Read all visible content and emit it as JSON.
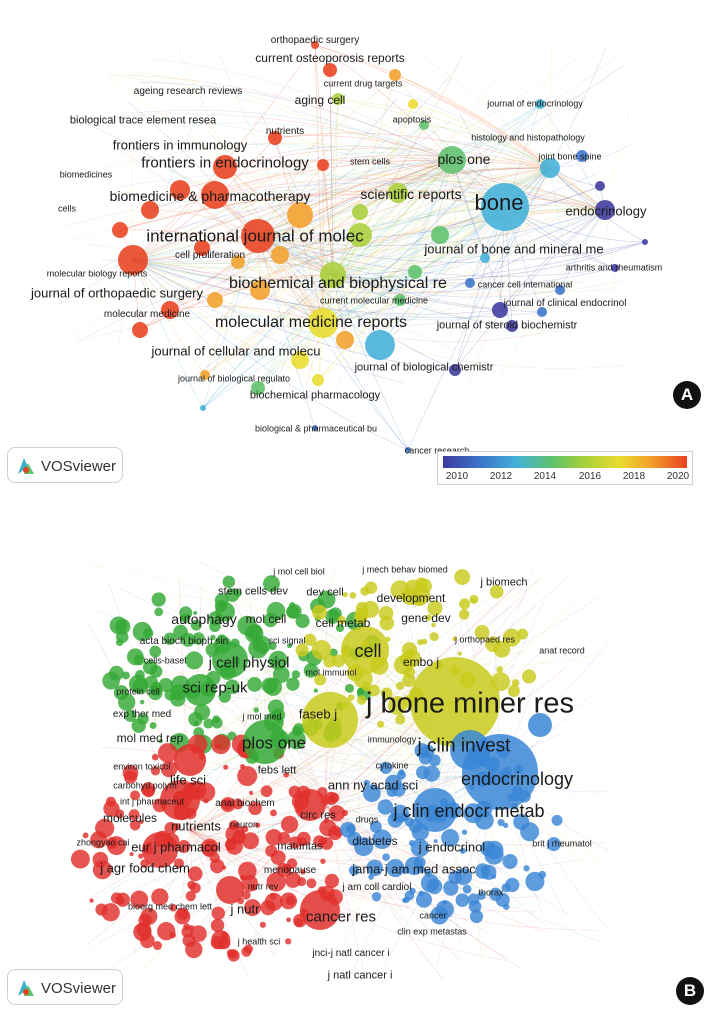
{
  "panel_a": {
    "badge": "A",
    "logo_text": "VOSviewer",
    "colorbar": {
      "ticks": [
        "2010",
        "2012",
        "2014",
        "2016",
        "2018",
        "2020"
      ],
      "colors": [
        "#3d3a9e",
        "#3b74c8",
        "#42b0d8",
        "#5ec26c",
        "#a9cf3a",
        "#e8dc2e",
        "#f3a12b",
        "#e8411f"
      ]
    },
    "labels": [
      "orthopaedic surgery",
      "current osteoporosis reports",
      "ageing research reviews",
      "current drug targets",
      "aging cell",
      "journal of endocrinology",
      "biological trace element resea",
      "apoptosis",
      "nutrients",
      "histology and histopathology",
      "frontiers in immunology",
      "joint bone spine",
      "biomedicines",
      "frontiers in endocrinology",
      "stem cells",
      "plos one",
      "cells",
      "biomedicine & pharmacotherapy",
      "scientific reports",
      "bone",
      "endocrinology",
      "international journal of molec",
      "journal of bone and mineral me",
      "cell proliferation",
      "arthritis and rheumatism",
      "molecular biology reports",
      "biochemical and biophysical re",
      "cancer cell international",
      "journal of orthopaedic surgery",
      "current molecular medicine",
      "journal of clinical endocrinol",
      "molecular medicine",
      "molecular medicine reports",
      "journal of steroid biochemistr",
      "journal of cellular and molecu",
      "journal of biological chemistr",
      "journal of biological regulato",
      "biochemical pharmacology",
      "biological & pharmaceutical bu",
      "cancer research"
    ]
  },
  "panel_b": {
    "badge": "B",
    "logo_text": "VOSviewer",
    "cluster_colors": {
      "red": "#e0302c",
      "green": "#35a936",
      "blue": "#3a86d6",
      "yellow": "#c9cb1c"
    },
    "labels": [
      "j mol cell biol",
      "j mech behav biomed",
      "j biomech",
      "stem cells dev",
      "dev cell",
      "development",
      "autophagy",
      "mol cell",
      "gene dev",
      "cell metab",
      "j orthopaed res",
      "acta bioch bioph sin",
      "sci signal",
      "anat record",
      "cells-basel",
      "j cell physiol",
      "cell",
      "embo j",
      "mol immunol",
      "protein cell",
      "sci rep-uk",
      "j bone miner res",
      "faseb j",
      "exp ther med",
      "j mol med",
      "immunology",
      "mol med rep",
      "plos one",
      "j clin invest",
      "environ toxicol",
      "cytokine",
      "life sci",
      "febs lett",
      "endocrinology",
      "carbohyd polym",
      "ann ny acad sci",
      "int j pharmaceut",
      "anal biochem",
      "molecules",
      "circ res",
      "j clin endocr metab",
      "drugs",
      "nutrients",
      "neuron",
      "diabetes",
      "zhongyao cai",
      "j endocrinol",
      "brit j rheumatol",
      "eur j pharmacol",
      "maturitas",
      "j agr food chem",
      "menopause",
      "jama-j am med assoc",
      "nutr rev",
      "j am coll cardiol",
      "bioorg med chem lett",
      "thorax",
      "j nutr",
      "cancer res",
      "cancer",
      "clin exp metastas",
      "j health sci",
      "jnci-j natl cancer i",
      "j natl cancer i"
    ]
  }
}
